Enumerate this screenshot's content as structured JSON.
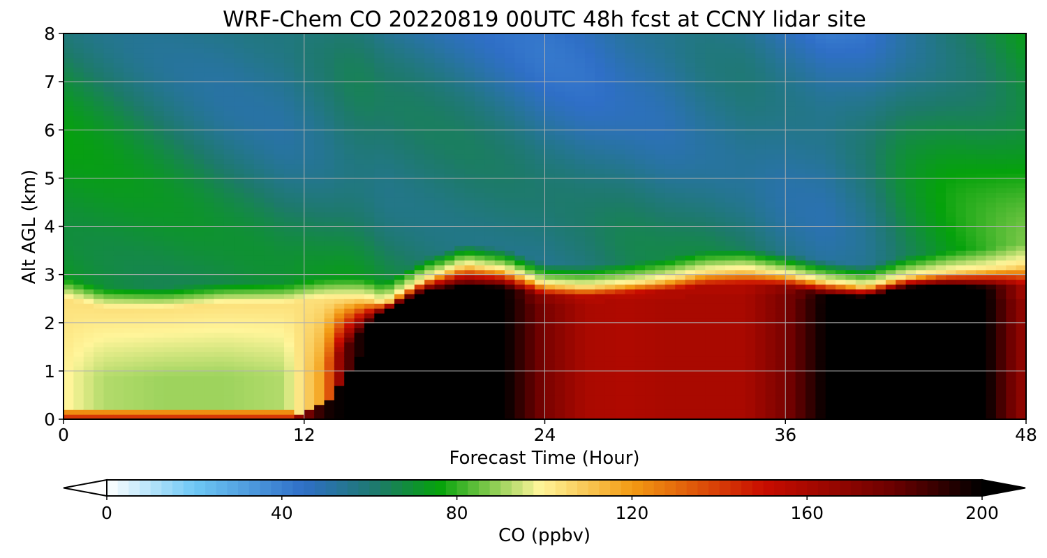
{
  "chart_data": {
    "type": "heatmap",
    "title": "WRF-Chem CO  20220819 00UTC 48h fcst at CCNY lidar site",
    "xlabel": "Forecast Time (Hour)",
    "ylabel": "Alt AGL (km)",
    "xlim": [
      0,
      48
    ],
    "ylim": [
      0,
      8
    ],
    "xticks": [
      0,
      12,
      24,
      36,
      48
    ],
    "yticks": [
      0,
      1,
      2,
      3,
      4,
      5,
      6,
      7,
      8
    ],
    "grid": true,
    "colorbar": {
      "label": "CO  (ppbv)",
      "range": [
        0,
        200
      ],
      "ticks": [
        0,
        40,
        80,
        120,
        160,
        200
      ],
      "extend": "both",
      "stops": [
        {
          "v": 0,
          "c": "#ffffff"
        },
        {
          "v": 20,
          "c": "#6ec8f5"
        },
        {
          "v": 45,
          "c": "#2f6fc7"
        },
        {
          "v": 62,
          "c": "#1d7a6a"
        },
        {
          "v": 76,
          "c": "#05a20b"
        },
        {
          "v": 88,
          "c": "#88cc50"
        },
        {
          "v": 99,
          "c": "#fff59a"
        },
        {
          "v": 120,
          "c": "#f39b13"
        },
        {
          "v": 150,
          "c": "#c90d00"
        },
        {
          "v": 180,
          "c": "#6a0000"
        },
        {
          "v": 200,
          "c": "#000000"
        }
      ]
    },
    "profile": {
      "hours": [
        0,
        2,
        5,
        8,
        11,
        13,
        14,
        15,
        16,
        18,
        20,
        22,
        24,
        26,
        28,
        30,
        32,
        34,
        36,
        38,
        40,
        42,
        44,
        46,
        48
      ],
      "boundary_layer_top_km": [
        2.5,
        2.3,
        2.3,
        2.4,
        2.4,
        2.5,
        2.5,
        2.5,
        2.4,
        2.9,
        3.2,
        3.1,
        2.8,
        2.75,
        2.8,
        2.9,
        3.05,
        3.1,
        3.0,
        2.85,
        2.75,
        2.95,
        3.05,
        3.1,
        3.2
      ],
      "polluted_core_top_km": [
        0.0,
        0.0,
        0.0,
        0.0,
        0.0,
        0.3,
        0.8,
        1.5,
        2.2,
        2.5,
        2.5,
        2.5,
        2.4,
        2.4,
        2.5,
        2.5,
        2.6,
        2.6,
        2.6,
        2.4,
        2.4,
        2.6,
        2.6,
        2.5,
        2.5
      ],
      "polluted_core_ppbv": [
        150,
        150,
        150,
        150,
        150,
        195,
        200,
        200,
        200,
        200,
        200,
        200,
        175,
        160,
        158,
        160,
        160,
        160,
        175,
        200,
        200,
        200,
        200,
        200,
        165
      ],
      "lower_layer_ppbv": [
        100,
        92,
        90,
        90,
        92,
        120,
        180,
        200,
        200,
        200,
        200,
        200,
        170,
        158,
        155,
        158,
        158,
        158,
        170,
        200,
        200,
        200,
        200,
        200,
        160
      ],
      "free_troposphere_ppbv": [
        78,
        76,
        72,
        68,
        66,
        68,
        70,
        70,
        68,
        66,
        64,
        62,
        60,
        60,
        62,
        62,
        64,
        64,
        60,
        58,
        62,
        70,
        75,
        78,
        82
      ]
    }
  }
}
